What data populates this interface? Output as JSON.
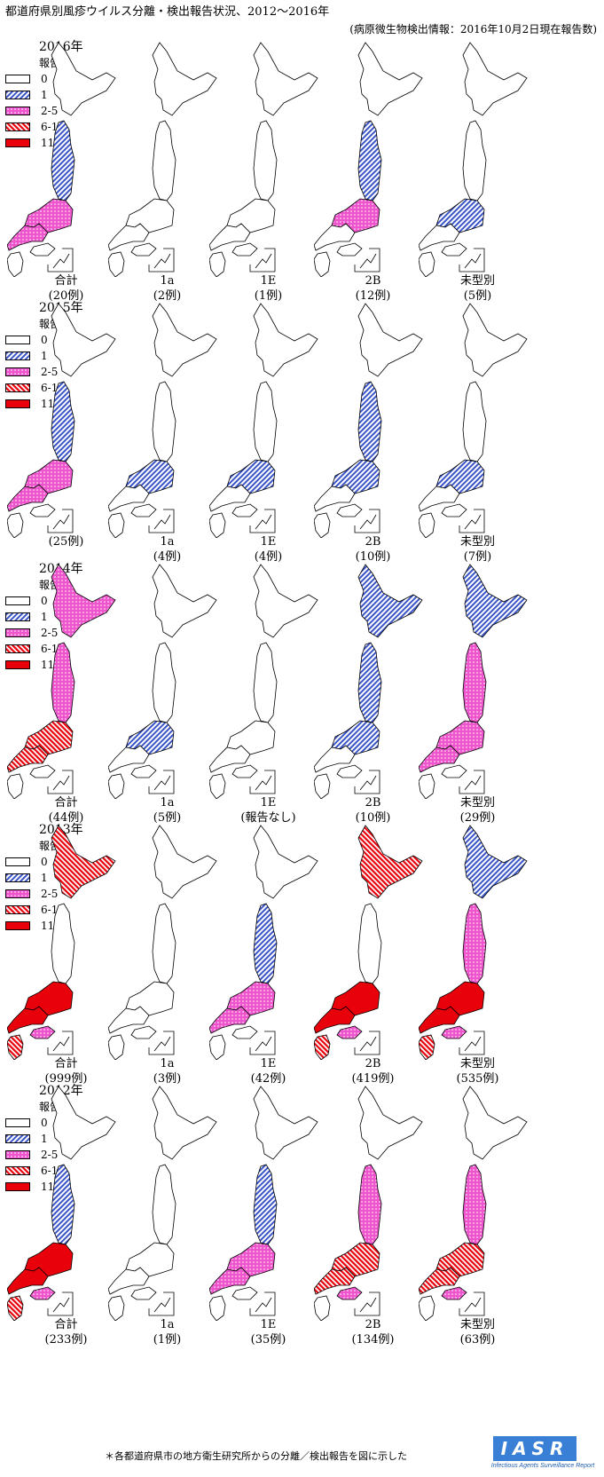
{
  "title": "都道府県別風疹ウイルス分離・検出報告状況、2012～2016年",
  "subtitle": "(病原微生物検出情報：2016年10月2日現在報告数)",
  "legend": {
    "title": "報告数",
    "items": [
      {
        "label": "0",
        "pattern": "white"
      },
      {
        "label": "1",
        "pattern": "blue-hatch"
      },
      {
        "label": "2-5",
        "pattern": "pink-dots"
      },
      {
        "label": "6-10",
        "pattern": "red-hatch"
      },
      {
        "label": "11-",
        "pattern": "red"
      }
    ]
  },
  "colors": {
    "blue": "#3b55c7",
    "pink": "#ee55cc",
    "red": "#e8000a"
  },
  "years": [
    {
      "year": "2016年",
      "maps": [
        {
          "name": "合計",
          "count": "(20例)",
          "shade": [
            0.18,
            0.52
          ]
        },
        {
          "name": "1a",
          "count": "(2例)",
          "shade": [
            0,
            0.05
          ]
        },
        {
          "name": "1E",
          "count": "(1例)",
          "shade": [
            0.02,
            0
          ]
        },
        {
          "name": "2B",
          "count": "(12例)",
          "shade": [
            0.15,
            0.38
          ]
        },
        {
          "name": "未型別",
          "count": "(5例)",
          "shade": [
            0.05,
            0.15
          ]
        }
      ]
    },
    {
      "year": "2015年",
      "maps": [
        {
          "name": "",
          "count": "(25例)",
          "shade": [
            0.15,
            0.45
          ]
        },
        {
          "name": "1a",
          "count": "(4例)",
          "shade": [
            0.05,
            0.18
          ]
        },
        {
          "name": "1E",
          "count": "(4例)",
          "shade": [
            0.05,
            0.12
          ]
        },
        {
          "name": "2B",
          "count": "(10例)",
          "shade": [
            0.12,
            0.3
          ]
        },
        {
          "name": "未型別",
          "count": "(7例)",
          "shade": [
            0.08,
            0.2
          ]
        }
      ]
    },
    {
      "year": "2014年",
      "maps": [
        {
          "name": "合計",
          "count": "(44例)",
          "shade": [
            0.3,
            0.7
          ]
        },
        {
          "name": "1a",
          "count": "(5例)",
          "shade": [
            0.05,
            0.15
          ]
        },
        {
          "name": "1E",
          "count": "(報告なし)",
          "shade": [
            0,
            0
          ]
        },
        {
          "name": "2B",
          "count": "(10例)",
          "shade": [
            0.25,
            0.3
          ]
        },
        {
          "name": "未型別",
          "count": "(29例)",
          "shade": [
            0.35,
            0.55
          ]
        }
      ]
    },
    {
      "year": "2013年",
      "maps": [
        {
          "name": "合計",
          "count": "(999例)",
          "shade": [
            0.05,
            0.92
          ]
        },
        {
          "name": "1a",
          "count": "(3例)",
          "shade": [
            0.02,
            0.04
          ]
        },
        {
          "name": "1E",
          "count": "(42例)",
          "shade": [
            0.2,
            0.45
          ]
        },
        {
          "name": "2B",
          "count": "(419例)",
          "shade": [
            0.08,
            0.85
          ]
        },
        {
          "name": "未型別",
          "count": "(535例)",
          "shade": [
            0.3,
            0.88
          ]
        }
      ]
    },
    {
      "year": "2012年",
      "maps": [
        {
          "name": "合計",
          "count": "(233例)",
          "shade": [
            0.15,
            0.82
          ]
        },
        {
          "name": "1a",
          "count": "(1例)",
          "shade": [
            0,
            0.03
          ]
        },
        {
          "name": "1E",
          "count": "(35例)",
          "shade": [
            0.25,
            0.55
          ]
        },
        {
          "name": "2B",
          "count": "(134例)",
          "shade": [
            0.35,
            0.72
          ]
        },
        {
          "name": "未型別",
          "count": "(63例)",
          "shade": [
            0.45,
            0.75
          ]
        }
      ]
    }
  ],
  "footnote": "＊各都道府県市の地方衛生研究所からの分離／検出報告を図に示した",
  "logo": {
    "text": "IASR",
    "subtext": "Infectious Agents Surveillance Report"
  }
}
